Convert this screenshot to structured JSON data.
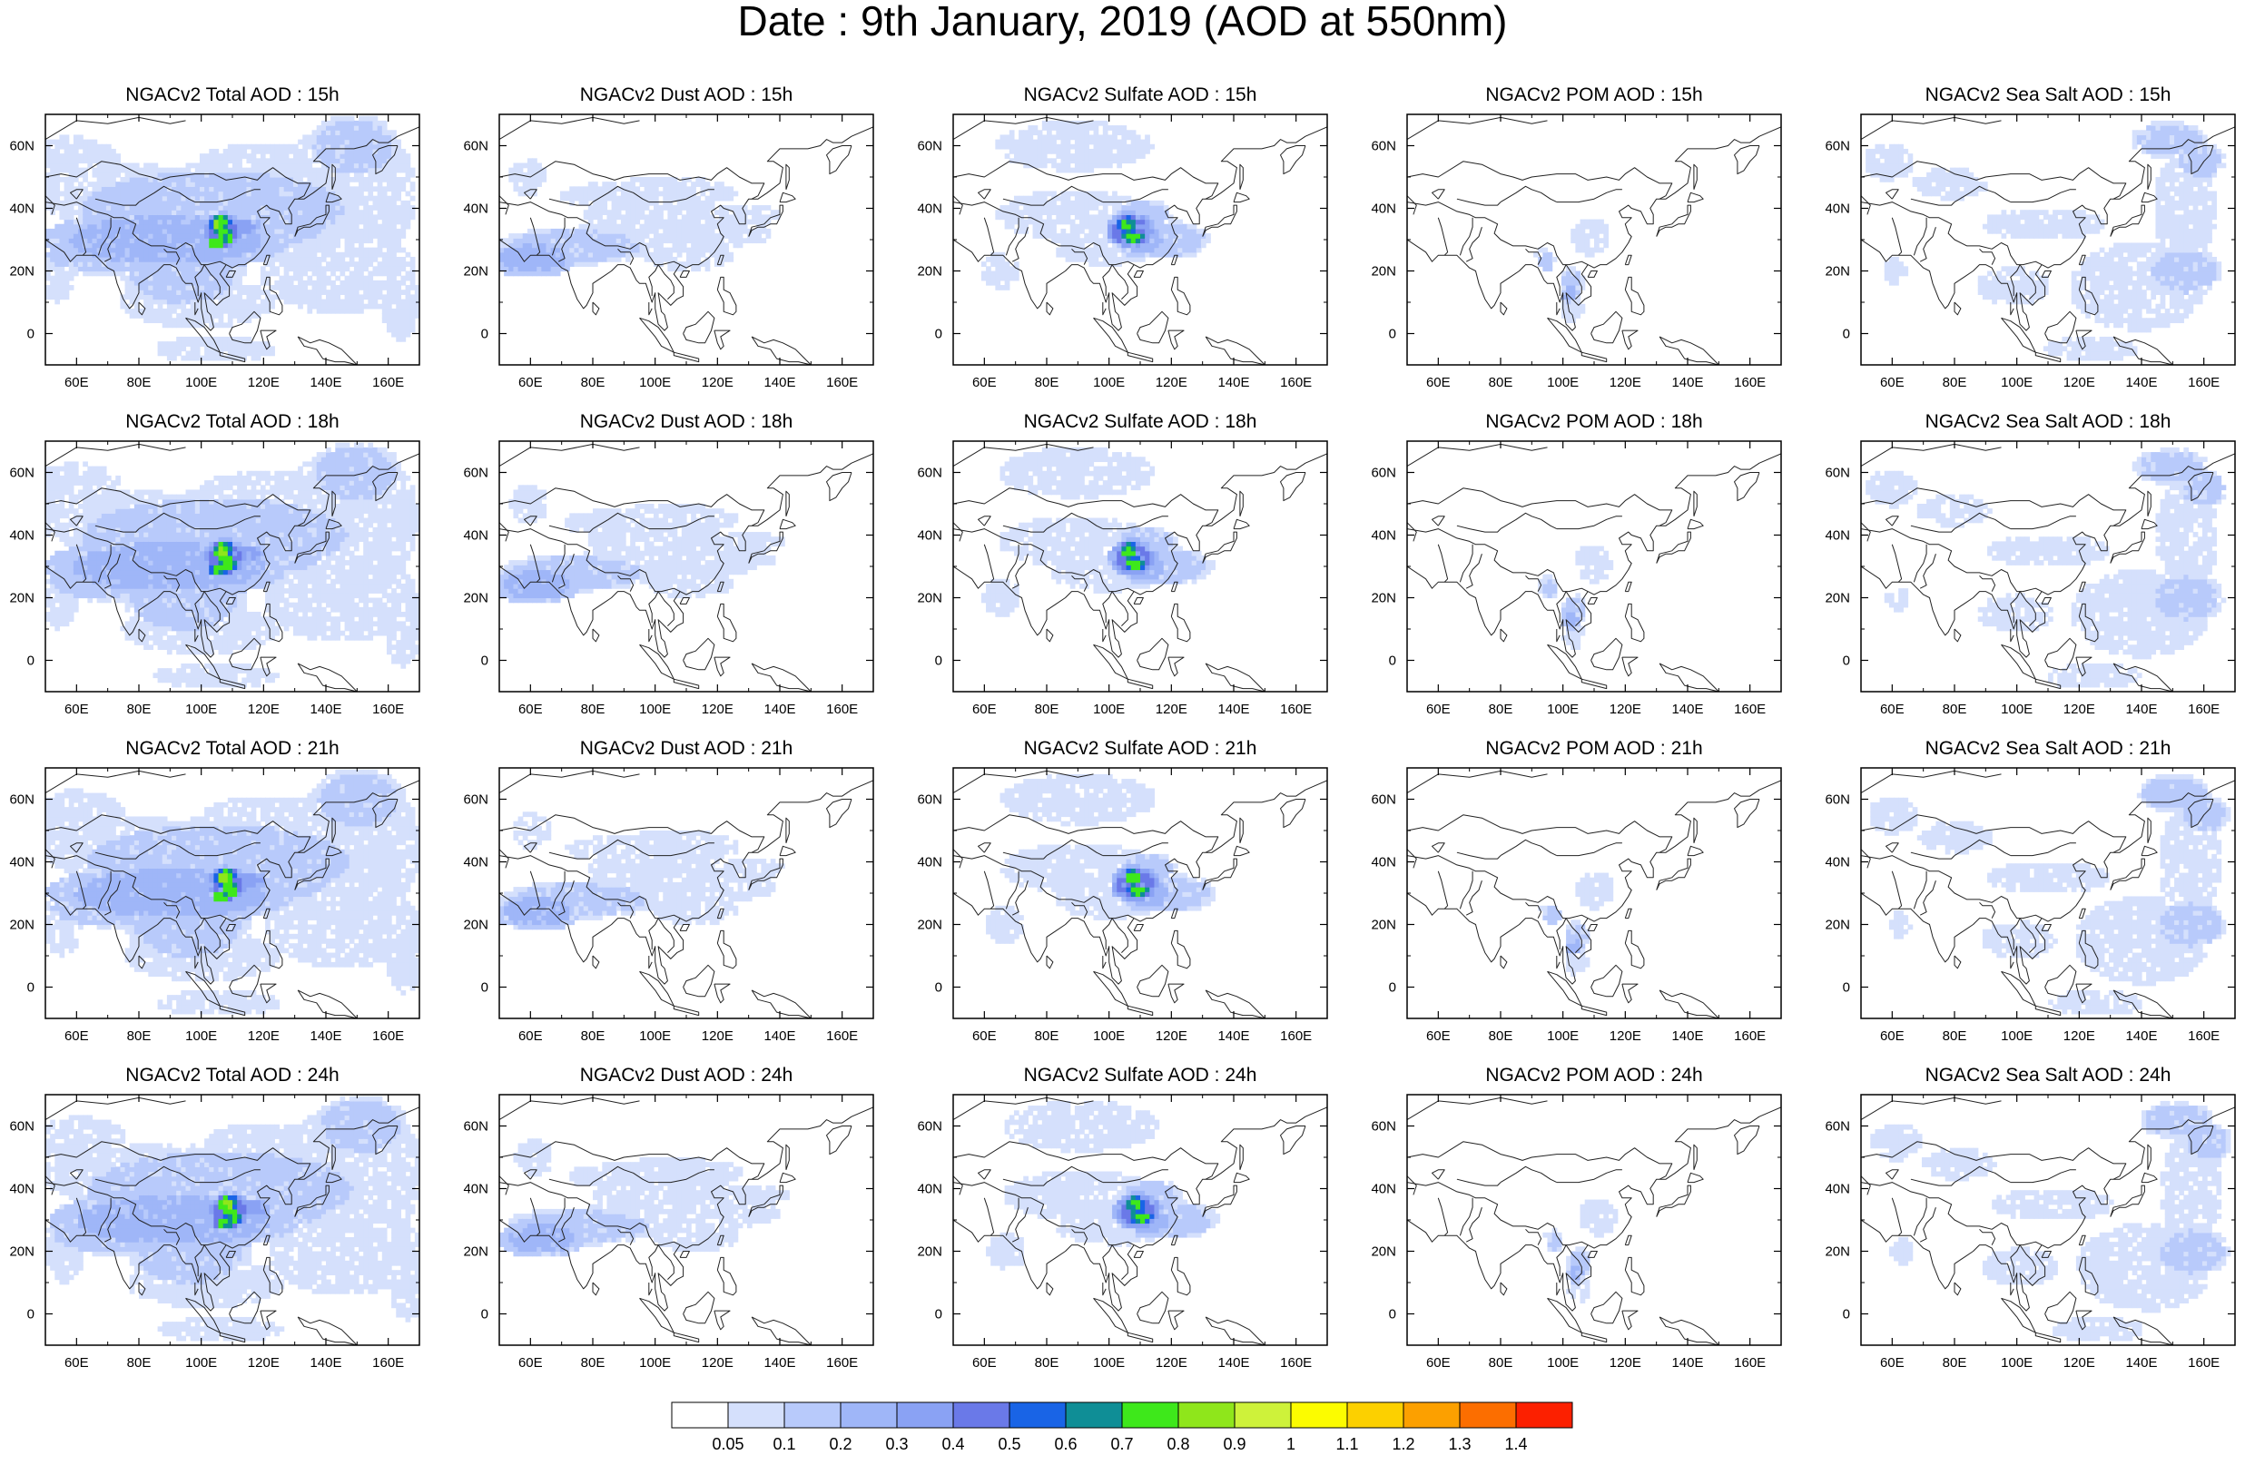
{
  "title": "Date : 9th January, 2019 (AOD at 550nm)",
  "panel_titles": [
    [
      "NGACv2 Total AOD : 15h",
      "NGACv2 Dust AOD : 15h",
      "NGACv2 Sulfate AOD : 15h",
      "NGACv2 POM AOD : 15h",
      "NGACv2 Sea Salt AOD : 15h"
    ],
    [
      "NGACv2 Total AOD : 18h",
      "NGACv2 Dust AOD : 18h",
      "NGACv2 Sulfate AOD : 18h",
      "NGACv2 POM AOD : 18h",
      "NGACv2 Sea Salt AOD : 18h"
    ],
    [
      "NGACv2 Total AOD : 21h",
      "NGACv2 Dust AOD : 21h",
      "NGACv2 Sulfate AOD : 21h",
      "NGACv2 POM AOD : 21h",
      "NGACv2 Sea Salt AOD : 21h"
    ],
    [
      "NGACv2 Total AOD : 24h",
      "NGACv2 Dust AOD : 24h",
      "NGACv2 Sulfate AOD : 24h",
      "NGACv2 POM AOD : 24h",
      "NGACv2 Sea Salt  AOD : 24h"
    ]
  ],
  "map": {
    "lon_range": [
      50,
      170
    ],
    "lat_range": [
      -10,
      70
    ],
    "x_ticks": [
      60,
      80,
      100,
      120,
      140,
      160
    ],
    "x_tick_labels": [
      "60E",
      "80E",
      "100E",
      "120E",
      "140E",
      "160E"
    ],
    "y_ticks": [
      0,
      20,
      40,
      60
    ],
    "y_tick_labels": [
      "0",
      "20N",
      "40N",
      "60N"
    ]
  },
  "colorbar": {
    "labels": [
      "0.05",
      "0.1",
      "0.2",
      "0.3",
      "0.4",
      "0.5",
      "0.6",
      "0.7",
      "0.8",
      "0.9",
      "1",
      "1.1",
      "1.2",
      "1.3",
      "1.4"
    ],
    "colors": [
      "#ffffff",
      "#d5e0fc",
      "#b8cafb",
      "#9fb6f8",
      "#8aa2f4",
      "#6a79e8",
      "#1964e6",
      "#0f8e96",
      "#3ee81b",
      "#8fe61b",
      "#cef23a",
      "#fcfc00",
      "#fcd000",
      "#fca000",
      "#fc6e00",
      "#fc2000"
    ]
  },
  "fields": [
    "total",
    "dust",
    "sulfate",
    "pom",
    "seasalt"
  ],
  "times": [
    "15h",
    "18h",
    "21h",
    "24h"
  ]
}
